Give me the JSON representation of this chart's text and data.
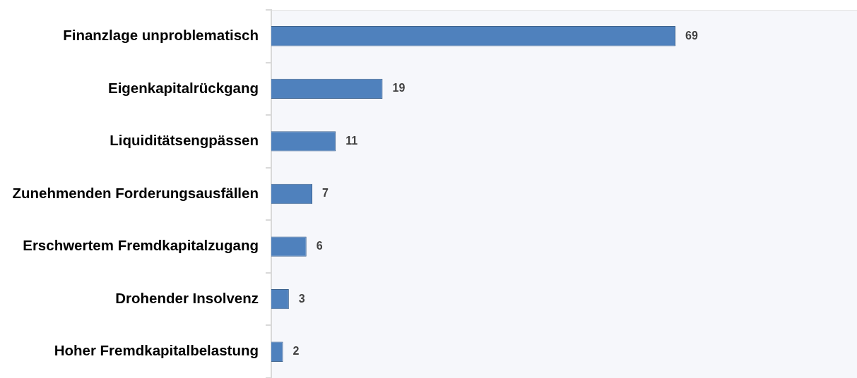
{
  "chart_data": {
    "type": "bar",
    "orientation": "horizontal",
    "categories": [
      "Finanzlage unproblematisch",
      "Eigenkapitalrückgang",
      "Liquiditätsengpässen",
      "Zunehmenden Forderungsausfällen",
      "Erschwertem Fremdkapitalzugang",
      "Drohender Insolvenz",
      "Hoher Fremdkapitalbelastung"
    ],
    "values": [
      69,
      19,
      11,
      7,
      6,
      3,
      2
    ],
    "color": "#4f81bd",
    "xlim": [
      0,
      100
    ],
    "data_labels": true,
    "tick_labels": "y"
  }
}
